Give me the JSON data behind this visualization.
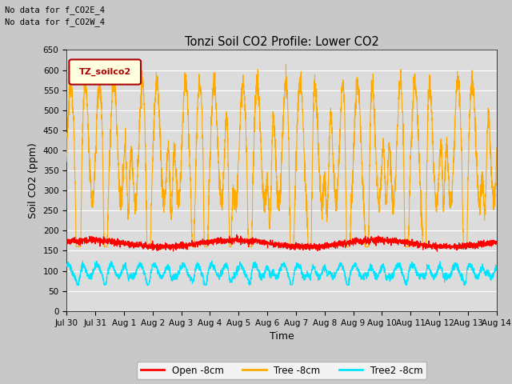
{
  "title": "Tonzi Soil CO2 Profile: Lower CO2",
  "xlabel": "Time",
  "ylabel": "Soil CO2 (ppm)",
  "ylim": [
    0,
    650
  ],
  "yticks": [
    0,
    50,
    100,
    150,
    200,
    250,
    300,
    350,
    400,
    450,
    500,
    550,
    600,
    650
  ],
  "note1": "No data for f_CO2E_4",
  "note2": "No data for f_CO2W_4",
  "legend_label_box": "TZ_soilco2",
  "legend_entries": [
    "Open -8cm",
    "Tree -8cm",
    "Tree2 -8cm"
  ],
  "open_color": "#ff0000",
  "tree_color": "#ffaa00",
  "tree2_color": "#00e5ff",
  "fig_bg": "#c8c8c8",
  "plot_bg": "#dcdcdc",
  "grid_color": "#ffffff",
  "xtick_labels": [
    "Jul 30",
    "Jul 31",
    "Aug 1",
    "Aug 2",
    "Aug 3",
    "Aug 4",
    "Aug 5",
    "Aug 6",
    "Aug 7",
    "Aug 8",
    "Aug 9",
    "Aug 10",
    "Aug 11",
    "Aug 12",
    "Aug 13",
    "Aug 14"
  ],
  "xtick_positions": [
    0,
    1,
    2,
    3,
    4,
    5,
    6,
    7,
    8,
    9,
    10,
    11,
    12,
    13,
    14,
    15
  ]
}
